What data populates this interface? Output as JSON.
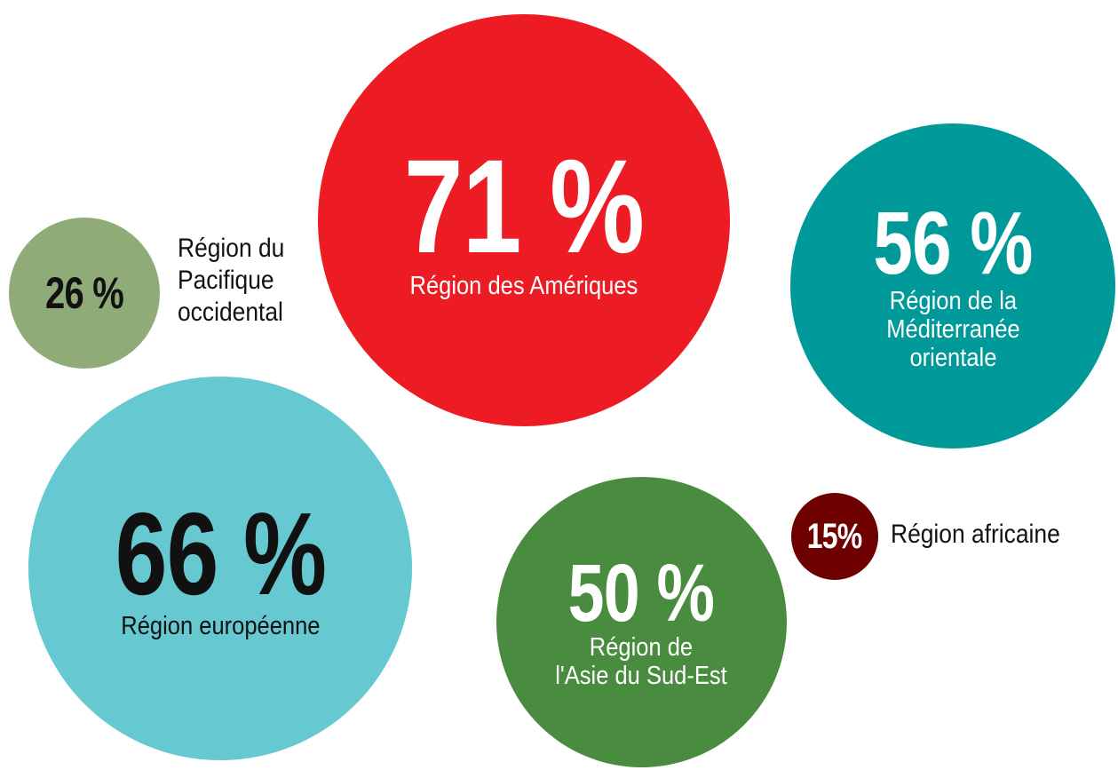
{
  "chart_data": {
    "type": "bubble",
    "categories": [
      "Région des Amériques",
      "Région de la\nMéditerranée\norientale",
      "Région du\nPacifique\noccidental",
      "Région européenne",
      "Région de\nl'Asie du Sud-Est",
      "Région africaine"
    ],
    "values": [
      71,
      56,
      26,
      66,
      50,
      15
    ],
    "value_labels": [
      "71 %",
      "56 %",
      "26 %",
      "66 %",
      "50 %",
      "15%"
    ],
    "colors": [
      "#ed1c24",
      "#009999",
      "#8fac78",
      "#66c8d0",
      "#4a8c3f",
      "#6e0000"
    ]
  }
}
